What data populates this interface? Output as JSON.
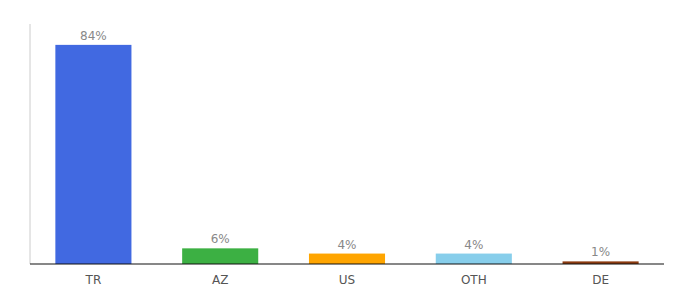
{
  "chart_data": {
    "type": "bar",
    "categories": [
      "TR",
      "AZ",
      "US",
      "OTH",
      "DE"
    ],
    "values": [
      84,
      6,
      4,
      4,
      1
    ],
    "value_labels": [
      "84%",
      "6%",
      "4%",
      "4%",
      "1%"
    ],
    "colors": [
      "#4169E1",
      "#3CB043",
      "#FFA500",
      "#87CEEB",
      "#8B3A0F"
    ],
    "ylim": [
      0,
      92
    ],
    "data_labels": true,
    "tick_labels": "x"
  }
}
